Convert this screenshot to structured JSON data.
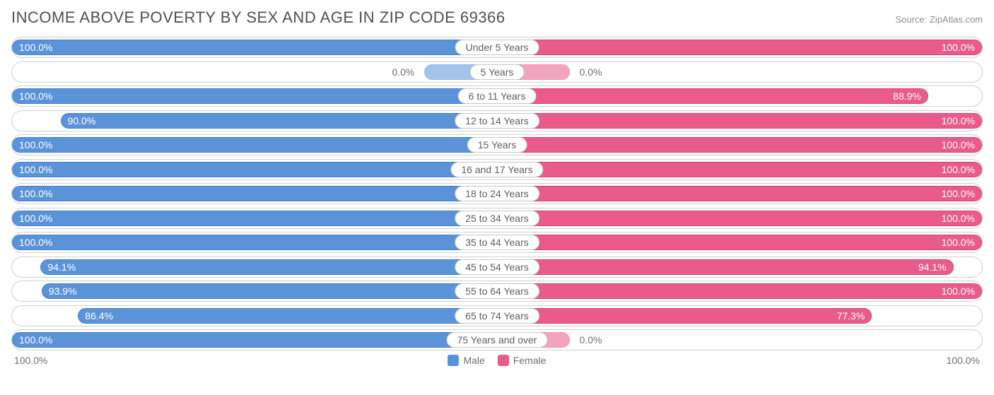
{
  "title": "INCOME ABOVE POVERTY BY SEX AND AGE IN ZIP CODE 69366",
  "source": "Source: ZipAtlas.com",
  "colors": {
    "male": "#5b93d8",
    "female": "#e85b8a",
    "border": "#d0d0d0",
    "text": "#707070"
  },
  "axis": {
    "left": "100.0%",
    "right": "100.0%"
  },
  "legend": {
    "male": "Male",
    "female": "Female"
  },
  "special_short_bar_pct": 15,
  "rows": [
    {
      "label": "Under 5 Years",
      "male": 100.0,
      "female": 100.0,
      "male_txt": "100.0%",
      "female_txt": "100.0%"
    },
    {
      "label": "5 Years",
      "male": 0.0,
      "female": 0.0,
      "male_txt": "0.0%",
      "female_txt": "0.0%",
      "short": true
    },
    {
      "label": "6 to 11 Years",
      "male": 100.0,
      "female": 88.9,
      "male_txt": "100.0%",
      "female_txt": "88.9%"
    },
    {
      "label": "12 to 14 Years",
      "male": 90.0,
      "female": 100.0,
      "male_txt": "90.0%",
      "female_txt": "100.0%"
    },
    {
      "label": "15 Years",
      "male": 100.0,
      "female": 100.0,
      "male_txt": "100.0%",
      "female_txt": "100.0%"
    },
    {
      "label": "16 and 17 Years",
      "male": 100.0,
      "female": 100.0,
      "male_txt": "100.0%",
      "female_txt": "100.0%"
    },
    {
      "label": "18 to 24 Years",
      "male": 100.0,
      "female": 100.0,
      "male_txt": "100.0%",
      "female_txt": "100.0%"
    },
    {
      "label": "25 to 34 Years",
      "male": 100.0,
      "female": 100.0,
      "male_txt": "100.0%",
      "female_txt": "100.0%"
    },
    {
      "label": "35 to 44 Years",
      "male": 100.0,
      "female": 100.0,
      "male_txt": "100.0%",
      "female_txt": "100.0%"
    },
    {
      "label": "45 to 54 Years",
      "male": 94.1,
      "female": 94.1,
      "male_txt": "94.1%",
      "female_txt": "94.1%"
    },
    {
      "label": "55 to 64 Years",
      "male": 93.9,
      "female": 100.0,
      "male_txt": "93.9%",
      "female_txt": "100.0%"
    },
    {
      "label": "65 to 74 Years",
      "male": 86.4,
      "female": 77.3,
      "male_txt": "86.4%",
      "female_txt": "77.3%"
    },
    {
      "label": "75 Years and over",
      "male": 100.0,
      "female": 0.0,
      "male_txt": "100.0%",
      "female_txt": "0.0%",
      "female_short": true
    }
  ]
}
